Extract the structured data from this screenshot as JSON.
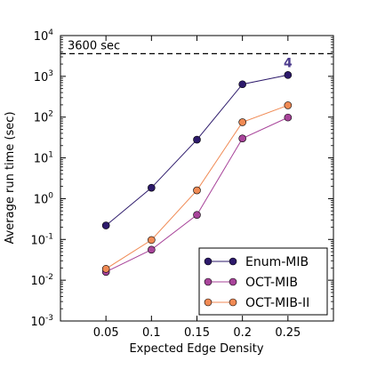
{
  "chart_data": {
    "type": "line",
    "title": "",
    "xlabel": "Expected Edge Density",
    "ylabel": "Average run time (sec)",
    "yscale": "log",
    "xlim": [
      0.0,
      0.3
    ],
    "ylim": [
      0.001,
      10000
    ],
    "x": [
      0.05,
      0.1,
      0.15,
      0.2,
      0.25
    ],
    "x_tick_labels": [
      "0.05",
      "0.1",
      "0.15",
      "0.2",
      "0.25"
    ],
    "y_ticks": [
      {
        "value": 0.001,
        "base": "10",
        "exp": "-3"
      },
      {
        "value": 0.01,
        "base": "10",
        "exp": "-2"
      },
      {
        "value": 0.1,
        "base": "10",
        "exp": "-1"
      },
      {
        "value": 1,
        "base": "10",
        "exp": "0"
      },
      {
        "value": 10,
        "base": "10",
        "exp": "1"
      },
      {
        "value": 100,
        "base": "10",
        "exp": "2"
      },
      {
        "value": 1000,
        "base": "10",
        "exp": "3"
      },
      {
        "value": 10000,
        "base": "10",
        "exp": "4"
      }
    ],
    "series": [
      {
        "name": "Enum-MIB",
        "color": "#2d1a6b",
        "values": [
          0.22,
          1.85,
          28,
          640,
          1080
        ]
      },
      {
        "name": "OCT-MIB",
        "color": "#a8449a",
        "values": [
          0.016,
          0.056,
          0.4,
          30,
          98
        ]
      },
      {
        "name": "OCT-MIB-II",
        "color": "#f08a54",
        "values": [
          0.019,
          0.097,
          1.6,
          75,
          195
        ]
      }
    ],
    "reference_line": {
      "value": 3600,
      "label": "3600 sec",
      "style": "dashed",
      "color": "#000000"
    },
    "point_annotation": {
      "series": "Enum-MIB",
      "x": 0.25,
      "text": "4",
      "color": "#4b3a8c"
    },
    "legend_position": "lower right",
    "grid": false
  }
}
